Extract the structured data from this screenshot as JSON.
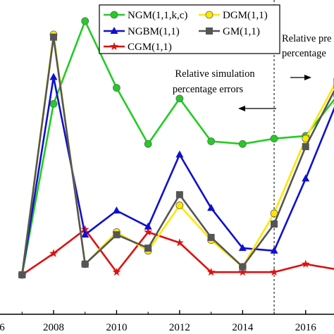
{
  "chart_data": {
    "type": "line",
    "x": [
      2007,
      2008,
      2009,
      2010,
      2011,
      2012,
      2013,
      2014,
      2015,
      2016,
      2017
    ],
    "x_tick_labels": [
      "6",
      "2008",
      "2010",
      "2012",
      "2014",
      "2016"
    ],
    "xlim": [
      2006.3,
      2016.9
    ],
    "ylim": [
      0,
      1
    ],
    "y_axis_labels_visible": false,
    "divider_x": 2015,
    "series": [
      {
        "name": "NGM(1,1,k,c)",
        "color": "#22cc22",
        "marker": "circle",
        "values": [
          0.0,
          0.64,
          0.95,
          0.7,
          0.49,
          0.66,
          0.5,
          0.49,
          0.51,
          0.52,
          0.67
        ]
      },
      {
        "name": "DGM(1,1)",
        "color": "#ffe600",
        "marker": "circle",
        "values": [
          0.0,
          0.9,
          0.04,
          0.16,
          0.09,
          0.26,
          0.13,
          0.03,
          0.23,
          0.51,
          0.73
        ]
      },
      {
        "name": "NGBM(1,1)",
        "color": "#1010cc",
        "marker": "triangle",
        "values": [
          0.0,
          0.74,
          0.15,
          0.24,
          0.18,
          0.45,
          0.25,
          0.1,
          0.09,
          0.36,
          0.65
        ]
      },
      {
        "name": "GM(1,1)",
        "color": "#555555",
        "marker": "square",
        "values": [
          0.0,
          0.89,
          0.04,
          0.15,
          0.1,
          0.3,
          0.14,
          0.03,
          0.19,
          0.48,
          0.71
        ]
      },
      {
        "name": "CGM(1,1)",
        "color": "#dd1111",
        "marker": "star",
        "values": [
          0.0,
          0.08,
          0.17,
          0.01,
          0.16,
          0.12,
          0.01,
          0.01,
          0.01,
          0.04,
          0.02
        ]
      }
    ],
    "annotations": [
      {
        "lines": [
          "Relative simulation",
          "percentage errors"
        ],
        "arrow": "left"
      },
      {
        "lines": [
          "Relative pre",
          "percentage"
        ],
        "arrow": "right"
      }
    ],
    "legend_position": "top-left"
  }
}
